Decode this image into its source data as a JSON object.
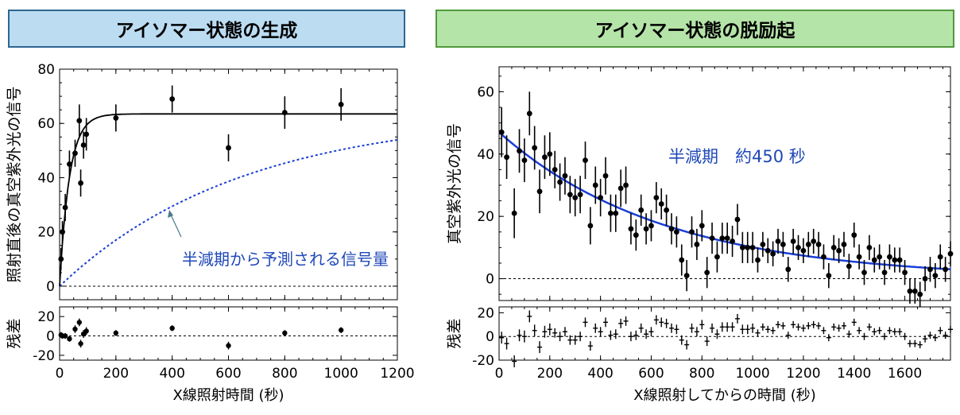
{
  "panels": {
    "left_title": "アイソマー状態の生成",
    "right_title": "アイソマー状態の脱励起"
  },
  "chart_data": [
    {
      "type": "scatter",
      "title": "アイソマー状態の生成",
      "xlabel": "X線照射時間 (秒)",
      "ylabel": "照射直後の真空紫外光の信号",
      "residual_label": "残差",
      "xlim": [
        0,
        1200
      ],
      "ylim": [
        -5,
        80
      ],
      "residual_ylim": [
        -25,
        30
      ],
      "xticks": [
        0,
        200,
        400,
        600,
        800,
        1000,
        1200
      ],
      "yticks": [
        0,
        20,
        40,
        60,
        80
      ],
      "residual_yticks": [
        -20,
        0,
        20
      ],
      "annotation": "半減期から予測される信号量",
      "colors": {
        "data": "#000000",
        "fit": "#000000",
        "prediction": "#1a3fd6",
        "annotation": "#1f48b8",
        "arrow": "#4a7a8c"
      },
      "x": [
        5,
        10,
        20,
        35,
        55,
        70,
        75,
        85,
        95,
        200,
        400,
        600,
        800,
        1000
      ],
      "y": [
        10,
        20,
        29,
        45,
        49,
        61,
        38,
        52,
        56,
        62,
        69,
        51,
        64,
        67
      ],
      "yerr": [
        4,
        4,
        5,
        5,
        5,
        6,
        5,
        5,
        6,
        5,
        5,
        5,
        6,
        6
      ],
      "fit": {
        "asymptote": 63.5,
        "tau": 35
      },
      "prediction": {
        "asymptote": 64,
        "half_life": 450
      },
      "residuals": [
        1,
        0,
        0,
        -3,
        7,
        14,
        -8,
        2,
        5,
        3,
        8,
        -10,
        3,
        6
      ],
      "residual_err": [
        3,
        3,
        3,
        3,
        4,
        4,
        4,
        4,
        4,
        3,
        3,
        4,
        3,
        3
      ]
    },
    {
      "type": "scatter",
      "title": "アイソマー状態の脱励起",
      "xlabel": "X線照射してからの時間 (秒)",
      "ylabel": "真空紫外光の信号",
      "residual_label": "残差",
      "xlim": [
        0,
        1780
      ],
      "ylim": [
        -7,
        68
      ],
      "residual_ylim": [
        -20,
        25
      ],
      "xticks": [
        0,
        200,
        400,
        600,
        800,
        1000,
        1200,
        1400,
        1600
      ],
      "yticks": [
        0,
        20,
        40,
        60
      ],
      "residual_yticks": [
        -20,
        0,
        20
      ],
      "annotation": "半減期　約450 秒",
      "colors": {
        "data": "#000000",
        "fit": "#1a3fd6",
        "annotation": "#1f48b8"
      },
      "x": [
        10,
        30,
        60,
        80,
        100,
        120,
        140,
        160,
        180,
        200,
        220,
        240,
        260,
        280,
        300,
        320,
        340,
        360,
        380,
        400,
        420,
        440,
        460,
        480,
        500,
        520,
        540,
        560,
        580,
        600,
        620,
        640,
        660,
        680,
        700,
        720,
        740,
        760,
        780,
        800,
        820,
        840,
        860,
        880,
        900,
        920,
        940,
        960,
        980,
        1000,
        1020,
        1040,
        1060,
        1080,
        1100,
        1120,
        1140,
        1160,
        1180,
        1200,
        1220,
        1240,
        1260,
        1280,
        1300,
        1320,
        1340,
        1360,
        1380,
        1400,
        1420,
        1440,
        1460,
        1480,
        1500,
        1520,
        1540,
        1560,
        1580,
        1600,
        1620,
        1640,
        1660,
        1680,
        1700,
        1720,
        1740,
        1760,
        1780
      ],
      "y": [
        47,
        39,
        21,
        41,
        38,
        53,
        42,
        28,
        39,
        40,
        35,
        31,
        33,
        27,
        26,
        27,
        38,
        17,
        30,
        26,
        33,
        21,
        21,
        29,
        30,
        16,
        14,
        22,
        16,
        17,
        26,
        24,
        22,
        16,
        15,
        6,
        1,
        15,
        11,
        17,
        2,
        13,
        7,
        13,
        13,
        12,
        19,
        10,
        10,
        10,
        6,
        11,
        9,
        8,
        12,
        11,
        3,
        12,
        10,
        9,
        11,
        12,
        11,
        7,
        1,
        10,
        9,
        11,
        4,
        14,
        7,
        2,
        10,
        6,
        7,
        2,
        7,
        6,
        6,
        2,
        -4,
        -4,
        -5,
        0,
        3,
        1,
        7,
        3,
        8
      ],
      "yerr": [
        8,
        7,
        8,
        7,
        7,
        7,
        7,
        7,
        7,
        7,
        6,
        6,
        6,
        6,
        6,
        6,
        6,
        6,
        6,
        6,
        6,
        6,
        6,
        6,
        6,
        5,
        5,
        5,
        5,
        5,
        5,
        5,
        5,
        5,
        5,
        5,
        5,
        5,
        5,
        5,
        5,
        5,
        5,
        5,
        5,
        5,
        5,
        5,
        5,
        5,
        4,
        4,
        4,
        4,
        4,
        4,
        4,
        4,
        4,
        4,
        4,
        4,
        4,
        4,
        4,
        4,
        4,
        4,
        4,
        4,
        4,
        4,
        4,
        4,
        4,
        4,
        4,
        4,
        4,
        4,
        4,
        4,
        4,
        4,
        4,
        4,
        4,
        4,
        4
      ],
      "fit": {
        "amplitude": 47,
        "half_life": 450
      },
      "residuals": [
        -1,
        -6,
        -21,
        1,
        0,
        17,
        5,
        -9,
        4,
        6,
        3,
        0,
        4,
        -3,
        -3,
        0,
        12,
        -8,
        7,
        4,
        12,
        1,
        2,
        11,
        13,
        0,
        1,
        7,
        2,
        4,
        14,
        12,
        11,
        7,
        6,
        -3,
        -7,
        7,
        4,
        10,
        -4,
        7,
        2,
        8,
        8,
        8,
        15,
        6,
        6,
        7,
        3,
        8,
        6,
        5,
        10,
        9,
        1,
        10,
        8,
        7,
        9,
        10,
        9,
        5,
        -1,
        8,
        7,
        9,
        2,
        12,
        5,
        0,
        8,
        4,
        5,
        0,
        5,
        4,
        4,
        0,
        -6,
        -6,
        -7,
        -2,
        1,
        -1,
        5,
        1,
        6
      ],
      "residual_err": [
        5,
        5,
        5,
        5,
        5,
        5,
        5,
        5,
        5,
        5,
        4,
        4,
        4,
        4,
        4,
        4,
        4,
        4,
        4,
        4,
        4,
        4,
        4,
        4,
        4,
        4,
        4,
        4,
        4,
        4,
        4,
        4,
        4,
        4,
        4,
        4,
        4,
        4,
        4,
        4,
        4,
        4,
        4,
        4,
        4,
        4,
        4,
        4,
        4,
        4,
        3,
        3,
        3,
        3,
        3,
        3,
        3,
        3,
        3,
        3,
        3,
        3,
        3,
        3,
        3,
        3,
        3,
        3,
        3,
        3,
        3,
        3,
        3,
        3,
        3,
        3,
        3,
        3,
        3,
        3,
        3,
        3,
        3,
        3,
        3,
        3,
        3,
        3,
        3
      ]
    }
  ]
}
